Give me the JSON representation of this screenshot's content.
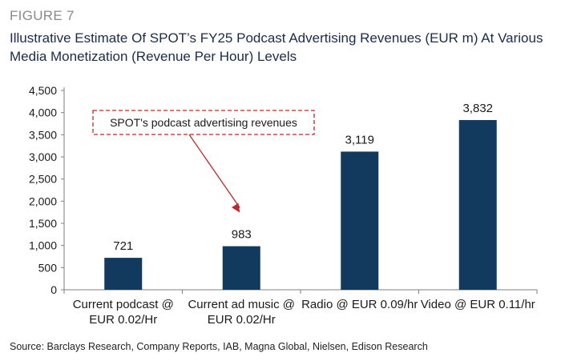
{
  "figure_label": "FIGURE 7",
  "title": "Illustrative Estimate Of SPOT’s FY25 Podcast Advertising Revenues (EUR m) At Various Media Monetization (Revenue Per Hour) Levels",
  "source": "Source: Barclays Research, Company Reports, IAB, Magna Global, Nielsen, Edison Research",
  "colors": {
    "bar": "#123a5e",
    "annotation": "#c0282d",
    "axis": "#7f7f7f"
  },
  "chart_data": {
    "type": "bar",
    "categories": [
      [
        "Current podcast @",
        "EUR 0.02/Hr"
      ],
      [
        "Current ad music @",
        "EUR 0.02/Hr"
      ],
      [
        "Radio @ EUR 0.09/hr"
      ],
      [
        "Video @ EUR 0.11/hr"
      ]
    ],
    "values": [
      721,
      983,
      3119,
      3832
    ],
    "value_labels": [
      "721",
      "983",
      "3,119",
      "3,832"
    ],
    "ylim": [
      0,
      4500
    ],
    "yticks": [
      0,
      500,
      1000,
      1500,
      2000,
      2500,
      3000,
      3500,
      4000,
      4500
    ],
    "ytick_labels": [
      "0",
      "500",
      "1,000",
      "1,500",
      "2,000",
      "2,500",
      "3,000",
      "3,500",
      "4,000",
      "4,500"
    ],
    "grid": false,
    "annotation": {
      "text": "SPOT's podcast advertising revenues",
      "points_to_category": 1
    }
  }
}
